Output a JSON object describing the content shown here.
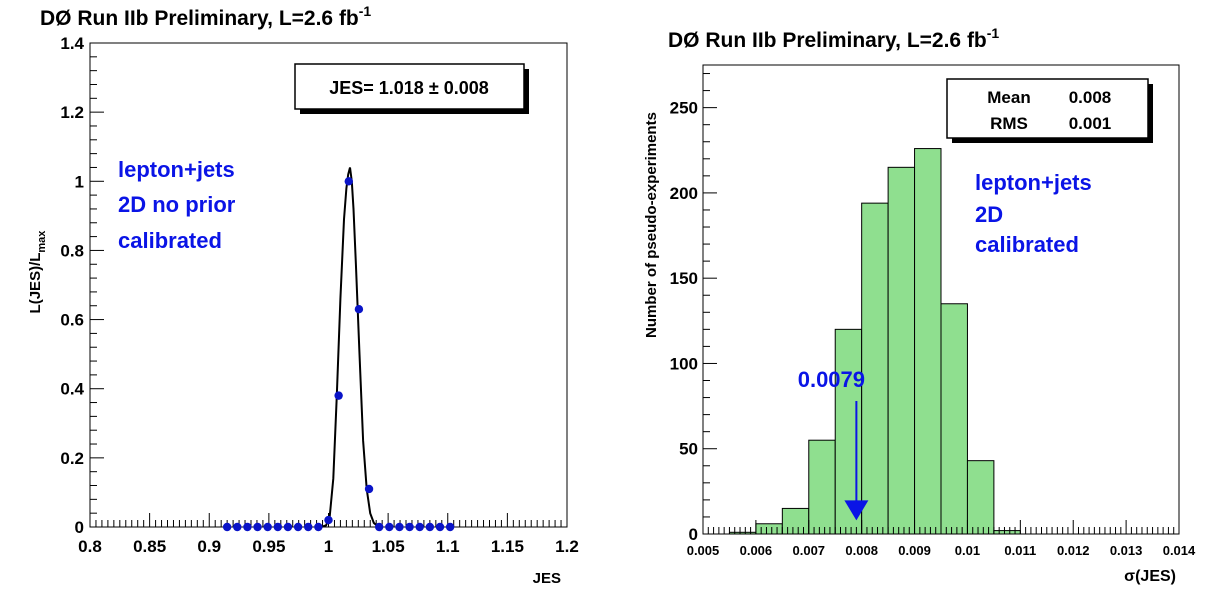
{
  "chart_data": [
    {
      "type": "scatter",
      "title": "DØ Run IIb Preliminary, L=2.6 fb",
      "title_sup": "-1",
      "xlabel": "JES",
      "ylabel_main": "L(JES)/L",
      "ylabel_sub": "max",
      "xlim": [
        0.8,
        1.2
      ],
      "ylim": [
        0,
        1.4
      ],
      "xticks": [
        {
          "v": 0.8,
          "label": "0.8"
        },
        {
          "v": 0.85,
          "label": "0.85"
        },
        {
          "v": 0.9,
          "label": "0.9"
        },
        {
          "v": 0.95,
          "label": "0.95"
        },
        {
          "v": 1.0,
          "label": "1"
        },
        {
          "v": 1.05,
          "label": "1.05"
        },
        {
          "v": 1.1,
          "label": "1.1"
        },
        {
          "v": 1.15,
          "label": "1.15"
        },
        {
          "v": 1.2,
          "label": "1.2"
        }
      ],
      "yticks": [
        {
          "v": 0,
          "label": "0"
        },
        {
          "v": 0.2,
          "label": "0.2"
        },
        {
          "v": 0.4,
          "label": "0.4"
        },
        {
          "v": 0.6,
          "label": "0.6"
        },
        {
          "v": 0.8,
          "label": "0.8"
        },
        {
          "v": 1.0,
          "label": "1"
        },
        {
          "v": 1.2,
          "label": "1.2"
        },
        {
          "v": 1.4,
          "label": "1.4"
        }
      ],
      "points": {
        "x": [
          0.915,
          0.9235,
          0.932,
          0.9405,
          0.949,
          0.9575,
          0.966,
          0.9745,
          0.983,
          0.9915,
          1.0,
          1.0085,
          1.017,
          1.0255,
          1.034,
          1.0425,
          1.051,
          1.0595,
          1.068,
          1.0765,
          1.085,
          1.0935,
          1.102
        ],
        "y": [
          0,
          0,
          0,
          0,
          0,
          0,
          0,
          0,
          0,
          0,
          0.02,
          0.38,
          1.0,
          0.63,
          0.11,
          0,
          0,
          0,
          0,
          0,
          0,
          0,
          0
        ]
      },
      "fit_curve": {
        "x": [
          0.994,
          0.998,
          1.001,
          1.004,
          1.007,
          1.01,
          1.013,
          1.015,
          1.0165,
          1.018,
          1.0195,
          1.021,
          1.023,
          1.026,
          1.029,
          1.032,
          1.035,
          1.038,
          1.041,
          1.045
        ],
        "y": [
          0,
          0.005,
          0.03,
          0.14,
          0.38,
          0.66,
          0.89,
          0.98,
          1.02,
          1.04,
          1.0,
          0.92,
          0.76,
          0.5,
          0.25,
          0.11,
          0.04,
          0.012,
          0.003,
          0
        ]
      },
      "stats_box": {
        "text": "JES= 1.018 ± 0.008"
      },
      "annotation_lines": [
        "lepton+jets",
        "2D no prior",
        "calibrated"
      ]
    },
    {
      "type": "bar",
      "title": "DØ Run IIb Preliminary, L=2.6 fb",
      "title_sup": "-1",
      "xlabel": "σ(JES)",
      "ylabel": "Number of pseudo-experiments",
      "xlim": [
        0.005,
        0.014
      ],
      "ylim": [
        0,
        275
      ],
      "xticks": [
        {
          "v": 0.005,
          "label": "0.005"
        },
        {
          "v": 0.006,
          "label": "0.006"
        },
        {
          "v": 0.007,
          "label": "0.007"
        },
        {
          "v": 0.008,
          "label": "0.008"
        },
        {
          "v": 0.009,
          "label": "0.009"
        },
        {
          "v": 0.01,
          "label": "0.01"
        },
        {
          "v": 0.011,
          "label": "0.011"
        },
        {
          "v": 0.012,
          "label": "0.012"
        },
        {
          "v": 0.013,
          "label": "0.013"
        },
        {
          "v": 0.014,
          "label": "0.014"
        }
      ],
      "yticks": [
        {
          "v": 0,
          "label": "0"
        },
        {
          "v": 50,
          "label": "50"
        },
        {
          "v": 100,
          "label": "100"
        },
        {
          "v": 150,
          "label": "150"
        },
        {
          "v": 200,
          "label": "200"
        },
        {
          "v": 250,
          "label": "250"
        }
      ],
      "bin_edges": [
        0.005,
        0.0055,
        0.006,
        0.0065,
        0.007,
        0.0075,
        0.008,
        0.0085,
        0.009,
        0.0095,
        0.01,
        0.0105,
        0.011,
        0.0115,
        0.012,
        0.0125,
        0.013,
        0.0135,
        0.014
      ],
      "values": [
        0,
        1,
        6,
        15,
        55,
        120,
        194,
        215,
        226,
        135,
        43,
        2,
        0,
        0,
        0,
        0,
        0,
        0
      ],
      "bar_color": "#8fdf8f",
      "stats_box": {
        "rows": [
          {
            "label": "Mean",
            "value": "0.008"
          },
          {
            "label": "RMS",
            "value": "0.001"
          }
        ]
      },
      "annotation_lines": [
        "lepton+jets",
        "2D",
        "calibrated"
      ],
      "arrow": {
        "label": "0.0079",
        "x": 0.0079,
        "y_top": 78,
        "y_bottom": 8,
        "color": "#0a14e6"
      }
    }
  ]
}
